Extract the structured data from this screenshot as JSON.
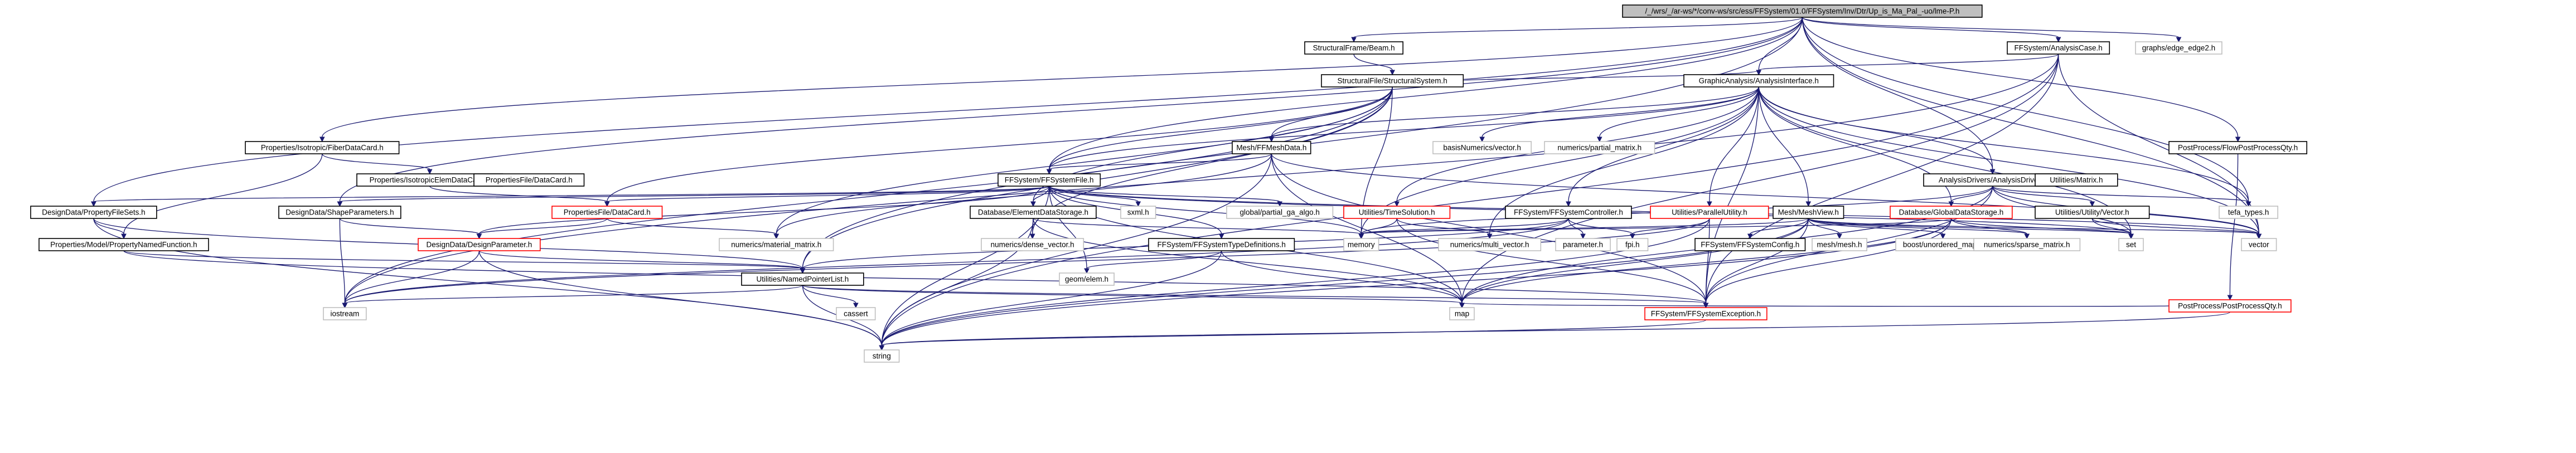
{
  "nodes": [
    {
      "id": "root",
      "label": "/_/wrs/_/ar-ws/*/conv-ws/src/ess/FFSystem/01.0/FFSystem/Inv/Dtr/Up_is_Ma_Pal_-uo/lme-P.h",
      "kind": "root"
    },
    {
      "id": "structuralframe",
      "label": "StructuralFrame/Beam.h",
      "kind": "normal"
    },
    {
      "id": "structuralfile",
      "label": "StructuralFile/StructuralSystem.h",
      "kind": "normal"
    },
    {
      "id": "graphs",
      "label": "graphs/edge_edge2.h",
      "kind": "gray"
    },
    {
      "id": "ffanalysiscase",
      "label": "FFSystem/AnalysisCase.h",
      "kind": "normal"
    },
    {
      "id": "propfiledata",
      "label": "Properties/Isotropic/FiberDataCard.h",
      "kind": "normal"
    },
    {
      "id": "graphicanalysis",
      "label": "GraphicAnalysis/AnalysisInterface.h",
      "kind": "normal"
    },
    {
      "id": "postprocessflow",
      "label": "PostProcess/FlowPostProcessQty.h",
      "kind": "normal"
    },
    {
      "id": "propisotropic",
      "label": "Properties/IsotropicElemDataCard.h",
      "kind": "normal"
    },
    {
      "id": "meshffmesh",
      "label": "Mesh/FFMeshData.h",
      "kind": "normal"
    },
    {
      "id": "basisnumerics",
      "label": "basisNumerics/vector.h",
      "kind": "gray"
    },
    {
      "id": "numericsmatrix",
      "label": "numerics/partial_matrix.h",
      "kind": "gray"
    },
    {
      "id": "analysisdrivers",
      "label": "AnalysisDrivers/AnalysisDriver.h",
      "kind": "normal"
    },
    {
      "id": "propfiledatacard",
      "label": "PropertiesFile/DataCard.h",
      "kind": "normal"
    },
    {
      "id": "ffsystemsolid",
      "label": "FFSystem/FFSystemFile.h",
      "kind": "normal"
    },
    {
      "id": "designdatapropfiles",
      "label": "DesignData/PropertyFileSets.h",
      "kind": "normal"
    },
    {
      "id": "designdatashape",
      "label": "DesignData/ShapeParameters.h",
      "kind": "normal"
    },
    {
      "id": "propfiledatacard2",
      "label": "PropertiesFile/DataCard.h",
      "kind": "red"
    },
    {
      "id": "xmath",
      "label": "sxml.h",
      "kind": "gray"
    },
    {
      "id": "globalrefinement",
      "label": "global/partial_ga_algo.h",
      "kind": "gray"
    },
    {
      "id": "database",
      "label": "Database/ElementDataStorage.h",
      "kind": "normal"
    },
    {
      "id": "utilitiessolution",
      "label": "Utilities/TimeSolution.h",
      "kind": "red"
    },
    {
      "id": "ffsystemffcontrol",
      "label": "FFSystem/FFSystemController.h",
      "kind": "normal"
    },
    {
      "id": "utilitiesparallel",
      "label": "Utilities/ParallelUtility.h",
      "kind": "red"
    },
    {
      "id": "meshmeshview",
      "label": "Mesh/MeshView.h",
      "kind": "normal"
    },
    {
      "id": "database2",
      "label": "Database/GlobalDataStorage.h",
      "kind": "red"
    },
    {
      "id": "utilitiesmatrix",
      "label": "Utilities/Matrix.h",
      "kind": "normal"
    },
    {
      "id": "designdatadesignparam",
      "label": "DesignData/DesignParameter.h",
      "kind": "red"
    },
    {
      "id": "propertiesmodel",
      "label": "Properties/Model/PropertyNamedFunction.h",
      "kind": "normal"
    },
    {
      "id": "numericsmat",
      "label": "numerics/material_matrix.h",
      "kind": "gray"
    },
    {
      "id": "numericsdense",
      "label": "numerics/dense_vector.h",
      "kind": "gray"
    },
    {
      "id": "ffsystemfftype",
      "label": "FFSystem/FFSystemTypeDefinitions.h",
      "kind": "normal"
    },
    {
      "id": "memory",
      "label": "memory",
      "kind": "gray"
    },
    {
      "id": "numericsmultivector",
      "label": "numerics/multi_vector.h",
      "kind": "gray"
    },
    {
      "id": "parameter",
      "label": "parameter.h",
      "kind": "gray"
    },
    {
      "id": "fpi",
      "label": "fpi.h",
      "kind": "gray"
    },
    {
      "id": "ffsystemconfig",
      "label": "FFSystem/FFSystemConfig.h",
      "kind": "normal"
    },
    {
      "id": "meshmesh",
      "label": "mesh/mesh.h",
      "kind": "gray"
    },
    {
      "id": "boostmap",
      "label": "boost/unordered_map.h",
      "kind": "gray"
    },
    {
      "id": "numericssparse",
      "label": "numerics/sparse_matrix.h",
      "kind": "gray"
    },
    {
      "id": "set",
      "label": "set",
      "kind": "gray"
    },
    {
      "id": "vector",
      "label": "vector",
      "kind": "gray"
    },
    {
      "id": "utilitiesnamedpointer",
      "label": "Utilities/NamedPointerList.h",
      "kind": "normal"
    },
    {
      "id": "geomelem",
      "label": "geom/elem.h",
      "kind": "gray"
    },
    {
      "id": "iostream",
      "label": "iostream",
      "kind": "gray"
    },
    {
      "id": "cassert",
      "label": "cassert",
      "kind": "gray"
    },
    {
      "id": "map",
      "label": "map",
      "kind": "gray"
    },
    {
      "id": "ffsystemexception",
      "label": "FFSystem/FFSystemException.h",
      "kind": "red"
    },
    {
      "id": "string",
      "label": "string",
      "kind": "gray"
    },
    {
      "id": "tefa",
      "label": "tefa_types.h",
      "kind": "gray"
    },
    {
      "id": "utilitiesutil",
      "label": "Utilities/Utility/Vector.h",
      "kind": "normal"
    },
    {
      "id": "postprocessqty",
      "label": "PostProcess/PostProcessQty.h",
      "kind": "red"
    }
  ],
  "edges": [
    [
      "root",
      "structuralframe"
    ],
    [
      "root",
      "graphicanalysis"
    ],
    [
      "root",
      "graphs"
    ],
    [
      "root",
      "ffanalysiscase"
    ],
    [
      "root",
      "propfiledata"
    ],
    [
      "root",
      "designdatapropfiles"
    ],
    [
      "root",
      "designdatashape"
    ],
    [
      "root",
      "tefa"
    ],
    [
      "root",
      "vector"
    ],
    [
      "root",
      "analysisdrivers"
    ],
    [
      "root",
      "postprocessflow"
    ],
    [
      "root",
      "ffsystemsolid"
    ],
    [
      "root",
      "utilitiesnamedpointer"
    ],
    [
      "structuralframe",
      "structuralfile"
    ],
    [
      "structuralfile",
      "graphicanalysis"
    ],
    [
      "structuralfile",
      "meshffmesh"
    ],
    [
      "structuralfile",
      "ffsystemsolid"
    ],
    [
      "structuralfile",
      "propfiledatacard2"
    ],
    [
      "structuralfile",
      "database"
    ],
    [
      "structuralfile",
      "utilitiesnamedpointer"
    ],
    [
      "structuralfile",
      "numericsmat"
    ],
    [
      "structuralfile",
      "numericsdense"
    ],
    [
      "structuralfile",
      "memory"
    ],
    [
      "structuralfile",
      "iostream"
    ],
    [
      "ffanalysiscase",
      "graphicanalysis"
    ],
    [
      "ffanalysiscase",
      "vector"
    ],
    [
      "ffanalysiscase",
      "ffsystemexception"
    ],
    [
      "ffanalysiscase",
      "string"
    ],
    [
      "ffanalysiscase",
      "map"
    ],
    [
      "ffanalysiscase",
      "iostream"
    ],
    [
      "propfiledata",
      "propisotropic"
    ],
    [
      "propisotropic",
      "propfiledatacard2"
    ],
    [
      "propfiledata",
      "propertiesmodel"
    ],
    [
      "graphicanalysis",
      "meshffmesh"
    ],
    [
      "graphicanalysis",
      "basisnumerics"
    ],
    [
      "graphicanalysis",
      "numericsmatrix"
    ],
    [
      "graphicanalysis",
      "analysisdrivers"
    ],
    [
      "graphicanalysis",
      "ffsystemsolid"
    ],
    [
      "graphicanalysis",
      "utilitiessolution"
    ],
    [
      "graphicanalysis",
      "ffsystemffcontrol"
    ],
    [
      "graphicanalysis",
      "utilitiesparallel"
    ],
    [
      "graphicanalysis",
      "meshmeshview"
    ],
    [
      "graphicanalysis",
      "database2"
    ],
    [
      "graphicanalysis",
      "memory"
    ],
    [
      "graphicanalysis",
      "vector"
    ],
    [
      "graphicanalysis",
      "tefa"
    ],
    [
      "graphicanalysis",
      "numericsmultivector"
    ],
    [
      "graphicanalysis",
      "ffsystemexception"
    ],
    [
      "graphicanalysis",
      "set"
    ],
    [
      "postprocessflow",
      "postprocessqty"
    ],
    [
      "meshffmesh",
      "ffsystemsolid"
    ],
    [
      "meshffmesh",
      "vector"
    ],
    [
      "meshffmesh",
      "string"
    ],
    [
      "meshffmesh",
      "map"
    ],
    [
      "meshffmesh",
      "ffsystemexception"
    ],
    [
      "meshffmesh",
      "numericsmat"
    ],
    [
      "analysisdrivers",
      "utilitiesutil"
    ],
    [
      "analysisdrivers",
      "vector"
    ],
    [
      "analysisdrivers",
      "tefa"
    ],
    [
      "analysisdrivers",
      "memory"
    ],
    [
      "analysisdrivers",
      "set"
    ],
    [
      "analysisdrivers",
      "ffsystemexception"
    ],
    [
      "analysisdrivers",
      "map"
    ],
    [
      "analysisdrivers",
      "database2"
    ],
    [
      "ffsystemsolid",
      "designdatapropfiles"
    ],
    [
      "ffsystemsolid",
      "designdatashape"
    ],
    [
      "ffsystemsolid",
      "propfiledatacard2"
    ],
    [
      "ffsystemsolid",
      "xmath"
    ],
    [
      "ffsystemsolid",
      "globalrefinement"
    ],
    [
      "ffsystemsolid",
      "database"
    ],
    [
      "ffsystemsolid",
      "ffsystemfftype"
    ],
    [
      "ffsystemsolid",
      "geomelem"
    ],
    [
      "ffsystemsolid",
      "map"
    ],
    [
      "ffsystemsolid",
      "string"
    ],
    [
      "ffsystemsolid",
      "memory"
    ],
    [
      "ffsystemsolid",
      "set"
    ],
    [
      "ffsystemsolid",
      "vector"
    ],
    [
      "ffsystemsolid",
      "designdatadesignparam"
    ],
    [
      "designdatapropfiles",
      "propertiesmodel"
    ],
    [
      "designdatapropfiles",
      "utilitiesnamedpointer"
    ],
    [
      "designdatapropfiles",
      "string"
    ],
    [
      "designdatashape",
      "designdatadesignparam"
    ],
    [
      "designdatashape",
      "iostream"
    ],
    [
      "propfiledatacard2",
      "designdatadesignparam"
    ],
    [
      "propfiledatacard2",
      "numericsmat"
    ],
    [
      "designdatadesignparam",
      "utilitiesnamedpointer"
    ],
    [
      "designdatadesignparam",
      "string"
    ],
    [
      "designdatadesignparam",
      "iostream"
    ],
    [
      "propertiesmodel",
      "utilitiesnamedpointer"
    ],
    [
      "propertiesmodel",
      "ffsystemexception"
    ],
    [
      "database",
      "numericsdense"
    ],
    [
      "database",
      "memory"
    ],
    [
      "database",
      "map"
    ],
    [
      "database",
      "string"
    ],
    [
      "utilitiessolution",
      "memory"
    ],
    [
      "utilitiessolution",
      "numericsmultivector"
    ],
    [
      "utilitiessolution",
      "ffsystemexception"
    ],
    [
      "ffsystemffcontrol",
      "parameter"
    ],
    [
      "ffsystemffcontrol",
      "fpi"
    ],
    [
      "ffsystemffcontrol",
      "utilitiesnamedpointer"
    ],
    [
      "ffsystemffcontrol",
      "memory"
    ],
    [
      "ffsystemffcontrol",
      "iostream"
    ],
    [
      "utilitiesparallel",
      "fpi"
    ],
    [
      "utilitiesparallel",
      "ffsystemexception"
    ],
    [
      "utilitiesparallel",
      "string"
    ],
    [
      "utilitiesparallel",
      "iostream"
    ],
    [
      "meshmeshview",
      "ffsystemconfig"
    ],
    [
      "meshmeshview",
      "meshmesh"
    ],
    [
      "meshmeshview",
      "boostmap"
    ],
    [
      "meshmeshview",
      "numericssparse"
    ],
    [
      "meshmeshview",
      "set"
    ],
    [
      "meshmeshview",
      "map"
    ],
    [
      "meshmeshview",
      "ffsystemexception"
    ],
    [
      "meshmeshview",
      "string"
    ],
    [
      "meshmeshview",
      "memory"
    ],
    [
      "meshmeshview",
      "vector"
    ],
    [
      "database2",
      "numericssparse"
    ],
    [
      "database2",
      "set"
    ],
    [
      "database2",
      "map"
    ],
    [
      "database2",
      "ffsystemexception"
    ],
    [
      "database2",
      "string"
    ],
    [
      "database2",
      "memory"
    ],
    [
      "utilitiesutil",
      "vector"
    ],
    [
      "utilitiesutil",
      "set"
    ],
    [
      "ffsystemfftype",
      "geomelem"
    ],
    [
      "ffsystemfftype",
      "map"
    ],
    [
      "ffsystemfftype",
      "string"
    ],
    [
      "utilitiesnamedpointer",
      "iostream"
    ],
    [
      "utilitiesnamedpointer",
      "cassert"
    ],
    [
      "utilitiesnamedpointer",
      "map"
    ],
    [
      "utilitiesnamedpointer",
      "string"
    ],
    [
      "utilitiesnamedpointer",
      "ffsystemexception"
    ],
    [
      "ffsystemexception",
      "string"
    ],
    [
      "postprocessqty",
      "map"
    ],
    [
      "postprocessqty",
      "string"
    ]
  ]
}
